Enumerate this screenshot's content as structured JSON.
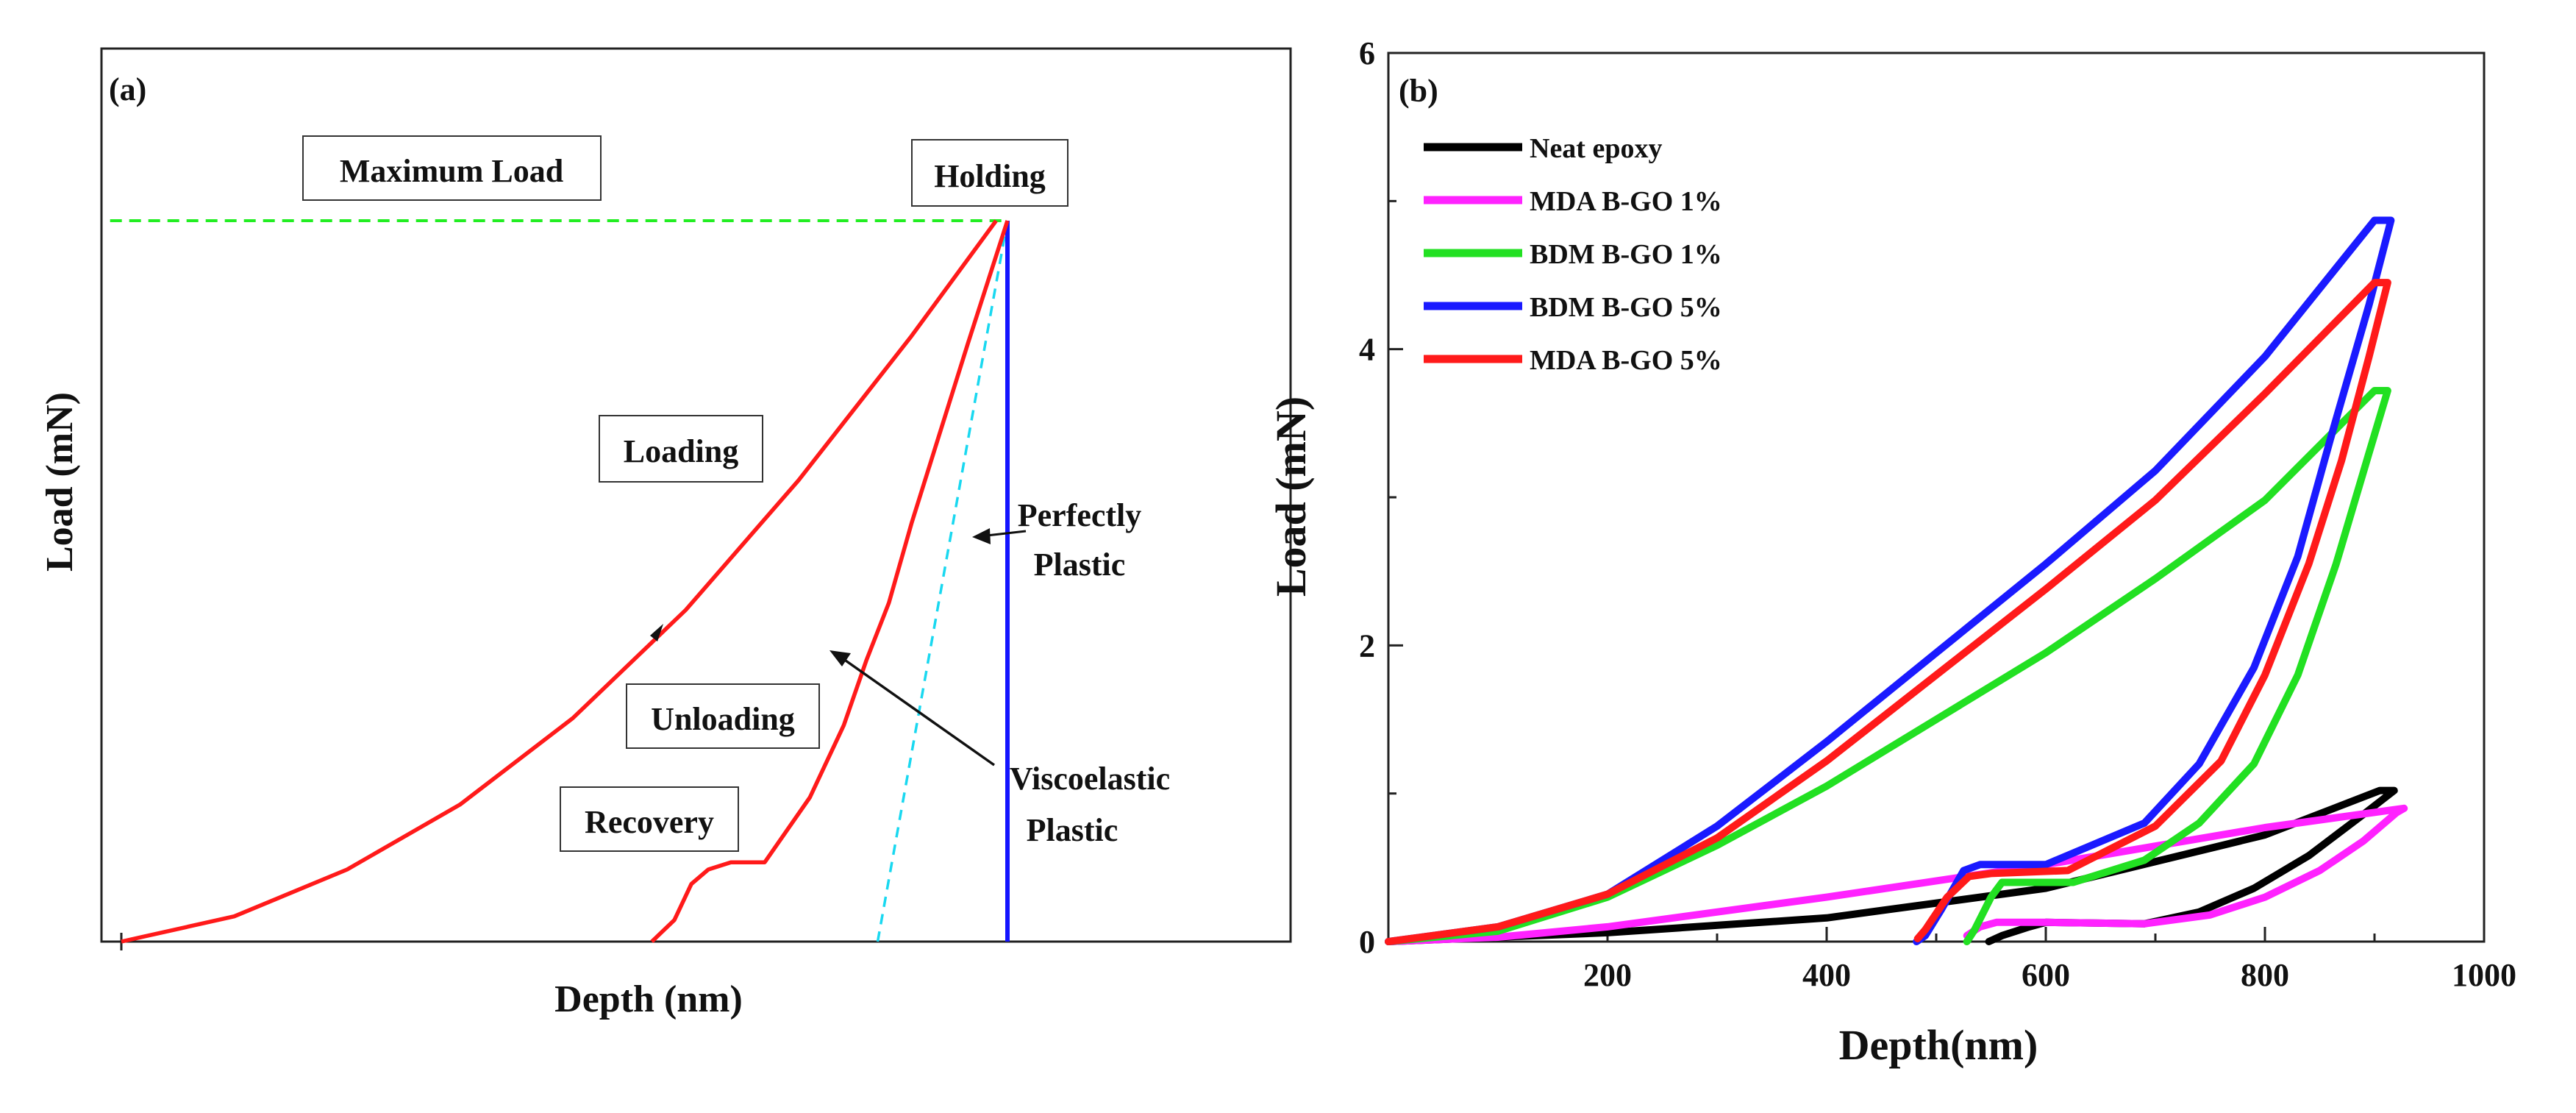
{
  "chart_data": [
    {
      "type": "line",
      "panel_label": "(a)",
      "title": "",
      "xlabel": "Depth (nm)",
      "ylabel": "Load (mN)",
      "xlim": [
        0,
        100
      ],
      "ylim": [
        0,
        100
      ],
      "ticks_labeled": false,
      "annotations": {
        "maximum_load": "Maximum Load",
        "holding": "Holding",
        "loading": "Loading",
        "unloading": "Unloading",
        "recovery": "Recovery",
        "perfectly_plastic_1": "Perfectly",
        "perfectly_plastic_2": "Plastic",
        "viscoelastic_plastic_1": "Viscoelastic",
        "viscoelastic_plastic_2": "Plastic"
      },
      "series": [
        {
          "name": "Loading",
          "color": "#ff1a1a",
          "points": [
            [
              0,
              0
            ],
            [
              10,
              3.5
            ],
            [
              20,
              10
            ],
            [
              30,
              19
            ],
            [
              40,
              31
            ],
            [
              50,
              46
            ],
            [
              60,
              64
            ],
            [
              70,
              84
            ],
            [
              77.5,
              100
            ]
          ]
        },
        {
          "name": "Unloading",
          "color": "#ff1a1a",
          "points": [
            [
              78.5,
              100
            ],
            [
              75,
              83
            ],
            [
              72,
              68
            ],
            [
              70,
              58
            ],
            [
              68,
              47
            ],
            [
              66,
              39
            ],
            [
              64,
              30
            ],
            [
              61,
              20
            ],
            [
              57,
              11
            ],
            [
              54,
              11
            ],
            [
              52,
              10
            ],
            [
              50.5,
              8
            ],
            [
              49,
              3
            ],
            [
              47,
              0
            ]
          ]
        },
        {
          "name": "Perfectly Plastic",
          "color": "#1414ff",
          "points": [
            [
              78.5,
              100
            ],
            [
              78.5,
              0
            ]
          ]
        },
        {
          "name": "Viscoelastic Plastic",
          "color": "#19d8f0",
          "dashed": true,
          "points": [
            [
              67,
              0
            ],
            [
              78.5,
              100
            ]
          ]
        },
        {
          "name": "Maximum Load",
          "color": "#22ee22",
          "dashed": true,
          "points": [
            [
              -1,
              100
            ],
            [
              78.5,
              100
            ]
          ]
        }
      ]
    },
    {
      "type": "line",
      "panel_label": "(b)",
      "title": "",
      "xlabel": "Depth(nm)",
      "ylabel": "Load (mN)",
      "xlim": [
        0,
        1000
      ],
      "ylim": [
        0,
        6
      ],
      "xticks": [
        "200",
        "400",
        "600",
        "800",
        "1000"
      ],
      "yticks": [
        "0",
        "2",
        "4",
        "6"
      ],
      "legend_position": "top-left",
      "series": [
        {
          "name": "Neat epoxy",
          "color": "#000000",
          "points": [
            [
              0,
              0
            ],
            [
              200,
              0.06
            ],
            [
              400,
              0.16
            ],
            [
              600,
              0.36
            ],
            [
              800,
              0.72
            ],
            [
              905,
              1.02
            ],
            [
              918,
              1.02
            ],
            [
              890,
              0.86
            ],
            [
              840,
              0.58
            ],
            [
              790,
              0.36
            ],
            [
              740,
              0.2
            ],
            [
              690,
              0.12
            ],
            [
              600,
              0.13
            ],
            [
              585,
              0.1
            ],
            [
              560,
              0.04
            ],
            [
              548,
              0
            ]
          ]
        },
        {
          "name": "MDA B-GO 1%",
          "color": "#ff22ff",
          "points": [
            [
              0,
              0
            ],
            [
              100,
              0.03
            ],
            [
              200,
              0.1
            ],
            [
              400,
              0.3
            ],
            [
              600,
              0.52
            ],
            [
              800,
              0.77
            ],
            [
              927,
              0.9
            ],
            [
              920,
              0.87
            ],
            [
              890,
              0.68
            ],
            [
              850,
              0.48
            ],
            [
              800,
              0.3
            ],
            [
              750,
              0.18
            ],
            [
              690,
              0.12
            ],
            [
              600,
              0.13
            ],
            [
              555,
              0.13
            ],
            [
              540,
              0.1
            ],
            [
              528,
              0.04
            ]
          ]
        },
        {
          "name": "BDM B-GO 1%",
          "color": "#22e022",
          "points": [
            [
              0,
              0
            ],
            [
              100,
              0.07
            ],
            [
              200,
              0.3
            ],
            [
              300,
              0.65
            ],
            [
              400,
              1.05
            ],
            [
              500,
              1.5
            ],
            [
              600,
              1.95
            ],
            [
              700,
              2.45
            ],
            [
              800,
              2.98
            ],
            [
              900,
              3.72
            ],
            [
              912,
              3.72
            ],
            [
              895,
              3.3
            ],
            [
              865,
              2.55
            ],
            [
              830,
              1.8
            ],
            [
              790,
              1.2
            ],
            [
              740,
              0.8
            ],
            [
              690,
              0.55
            ],
            [
              625,
              0.4
            ],
            [
              560,
              0.4
            ],
            [
              550,
              0.3
            ],
            [
              535,
              0.08
            ],
            [
              528,
              0
            ]
          ]
        },
        {
          "name": "BDM B-GO 5%",
          "color": "#1a1aff",
          "points": [
            [
              0,
              0
            ],
            [
              100,
              0.1
            ],
            [
              200,
              0.32
            ],
            [
              300,
              0.78
            ],
            [
              400,
              1.35
            ],
            [
              500,
              1.95
            ],
            [
              600,
              2.55
            ],
            [
              700,
              3.18
            ],
            [
              800,
              3.95
            ],
            [
              900,
              4.87
            ],
            [
              915,
              4.87
            ],
            [
              895,
              4.3
            ],
            [
              860,
              3.4
            ],
            [
              830,
              2.6
            ],
            [
              790,
              1.85
            ],
            [
              740,
              1.2
            ],
            [
              690,
              0.8
            ],
            [
              600,
              0.52
            ],
            [
              540,
              0.52
            ],
            [
              525,
              0.48
            ],
            [
              505,
              0.22
            ],
            [
              490,
              0.04
            ],
            [
              482,
              0
            ]
          ]
        },
        {
          "name": "MDA B-GO 5%",
          "color": "#ff1a1a",
          "points": [
            [
              0,
              0
            ],
            [
              100,
              0.1
            ],
            [
              200,
              0.32
            ],
            [
              300,
              0.7
            ],
            [
              400,
              1.22
            ],
            [
              500,
              1.8
            ],
            [
              600,
              2.38
            ],
            [
              700,
              2.98
            ],
            [
              800,
              3.7
            ],
            [
              900,
              4.45
            ],
            [
              912,
              4.45
            ],
            [
              895,
              3.95
            ],
            [
              870,
              3.25
            ],
            [
              840,
              2.55
            ],
            [
              800,
              1.8
            ],
            [
              760,
              1.22
            ],
            [
              700,
              0.78
            ],
            [
              620,
              0.48
            ],
            [
              550,
              0.46
            ],
            [
              530,
              0.44
            ],
            [
              510,
              0.3
            ],
            [
              490,
              0.08
            ],
            [
              483,
              0.02
            ]
          ]
        }
      ]
    }
  ]
}
